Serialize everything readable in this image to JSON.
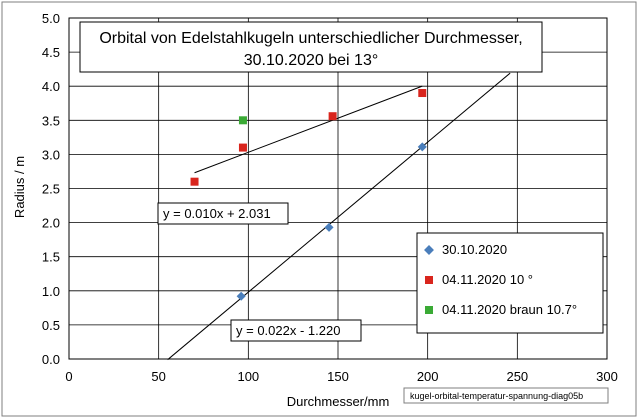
{
  "chart_data": {
    "type": "scatter",
    "title_lines": [
      "Orbital von Edelstahlkugeln unterschiedlicher Durchmesser,",
      "30.10.2020  bei 13°"
    ],
    "xlabel": "Durchmesser/mm",
    "ylabel": "Radius / m",
    "xlim": [
      0,
      300
    ],
    "ylim": [
      0,
      5
    ],
    "x_ticks": [
      0,
      50,
      100,
      150,
      200,
      250,
      300
    ],
    "y_ticks": [
      0,
      0.5,
      1,
      1.5,
      2,
      2.5,
      3,
      3.5,
      4,
      4.5,
      5
    ],
    "x_tick_labels": [
      "0",
      "50",
      "100",
      "150",
      "200",
      "250",
      "300"
    ],
    "y_tick_labels": [
      "0.0",
      "0.5",
      "1.0",
      "1.5",
      "2.0",
      "2.5",
      "3.0",
      "3.5",
      "4.0",
      "4.5",
      "5.0"
    ],
    "grid": true,
    "legend_position": "bottom-right",
    "series": [
      {
        "name": "30.10.2020",
        "color": "#4a7ebb",
        "marker": "diamond",
        "points": [
          [
            96,
            0.92
          ],
          [
            145,
            1.93
          ],
          [
            197,
            3.11
          ]
        ]
      },
      {
        "name": "04.11.2020 10 °",
        "color": "#d9251d",
        "marker": "square",
        "points": [
          [
            70,
            2.6
          ],
          [
            97,
            3.1
          ],
          [
            147,
            3.56
          ],
          [
            197,
            3.9
          ]
        ]
      },
      {
        "name": "04.11.2020 braun 10.7°",
        "color": "#3aaa35",
        "marker": "square",
        "points": [
          [
            97,
            3.5
          ]
        ]
      }
    ],
    "trendlines": [
      {
        "equation": "y = 0.010x + 2.031",
        "slope": 0.01,
        "intercept": 2.031,
        "x_range": [
          70,
          197
        ]
      },
      {
        "equation": "y = 0.022x - 1.220",
        "slope": 0.022,
        "intercept": -1.22,
        "x_range": [
          55,
          246
        ]
      }
    ],
    "caption": "kugel-orbital-temperatur-spannung-diag05b"
  }
}
